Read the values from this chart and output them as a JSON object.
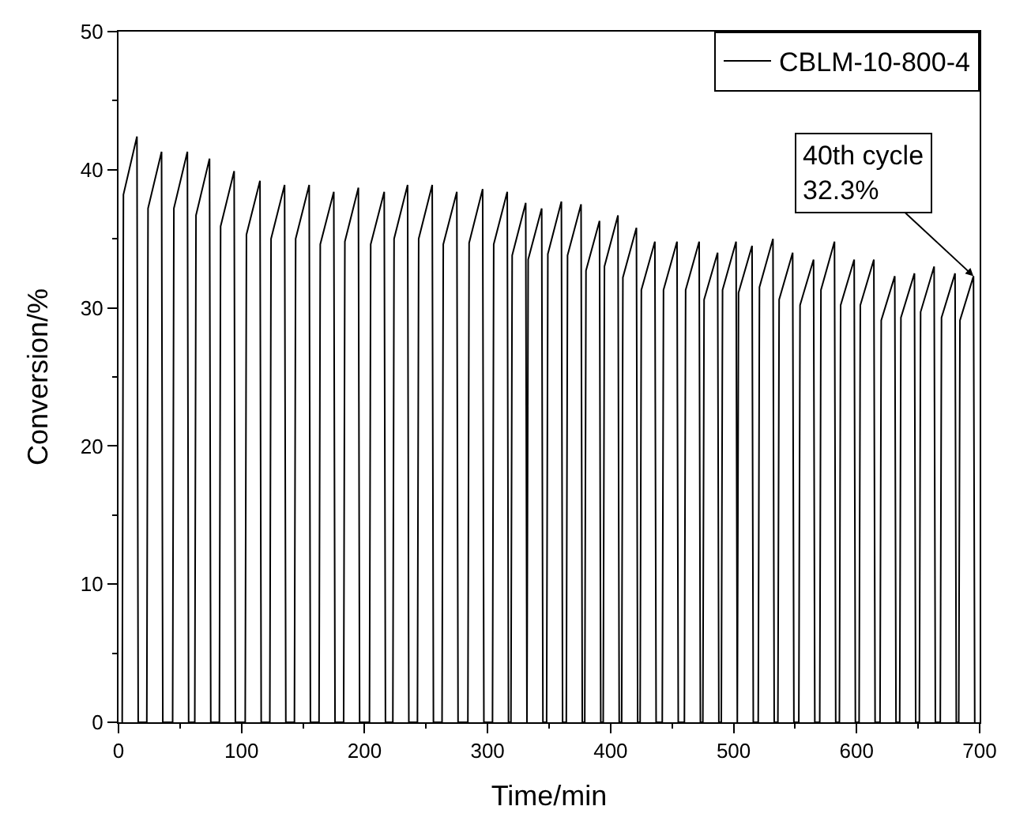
{
  "chart_data": {
    "type": "line",
    "xlabel": "Time/min",
    "ylabel": "Conversion/%",
    "xlim": [
      0,
      700
    ],
    "ylim": [
      0,
      50
    ],
    "xticks": [
      0,
      100,
      200,
      300,
      400,
      500,
      600,
      700
    ],
    "yticks": [
      0,
      10,
      20,
      30,
      40,
      50
    ],
    "legend": "top right",
    "marker": "none",
    "line_style": "solid",
    "annotations": [
      {
        "text": "40th cycle\n32.3%",
        "x": 695,
        "y": 32.3
      }
    ],
    "series": [
      {
        "name": "CBLM-10-800-4",
        "color": "#000000",
        "x": [
          3,
          4,
          15,
          16,
          23,
          24,
          35,
          36,
          44,
          45,
          56,
          57,
          62,
          63,
          74,
          75,
          82,
          83,
          94,
          95,
          103,
          104,
          115,
          116,
          123,
          124,
          135,
          136,
          143,
          144,
          155,
          156,
          163,
          164,
          175,
          176,
          183,
          184,
          195,
          196,
          204,
          205,
          216,
          217,
          223,
          224,
          235,
          236,
          243,
          244,
          255,
          256,
          263,
          264,
          275,
          276,
          284,
          285,
          296,
          297,
          304,
          305,
          316,
          317,
          319,
          320,
          331,
          332,
          332,
          333,
          344,
          345,
          348,
          349,
          360,
          361,
          364,
          365,
          376,
          377,
          379,
          380,
          391,
          392,
          394,
          395,
          406,
          407,
          409,
          410,
          421,
          422,
          424,
          425,
          436,
          437,
          442,
          443,
          454,
          455,
          460,
          461,
          472,
          473,
          475,
          476,
          487,
          488,
          490,
          491,
          502,
          503,
          503,
          504,
          515,
          516,
          520,
          521,
          532,
          533,
          536,
          537,
          548,
          549,
          553,
          554,
          565,
          566,
          570,
          571,
          582,
          583,
          586,
          587,
          598,
          599,
          602,
          603,
          614,
          615,
          619,
          620,
          631,
          632,
          635,
          636,
          647,
          648,
          651,
          652,
          663,
          664,
          668,
          669,
          680,
          681,
          683,
          684,
          695,
          696
        ],
        "values": [
          0,
          38.2,
          42.4,
          0,
          0,
          37.2,
          41.3,
          0,
          0,
          37.2,
          41.3,
          0,
          0,
          36.7,
          40.8,
          0,
          0,
          35.9,
          39.9,
          0,
          0,
          35.3,
          39.2,
          0,
          0,
          35.0,
          38.9,
          0,
          0,
          35.0,
          38.9,
          0,
          0,
          34.6,
          38.4,
          0,
          0,
          34.8,
          38.7,
          0,
          0,
          34.6,
          38.4,
          0,
          0,
          35.0,
          38.9,
          0,
          0,
          35.0,
          38.9,
          0,
          0,
          34.6,
          38.4,
          0,
          0,
          34.7,
          38.6,
          0,
          0,
          34.6,
          38.4,
          0,
          0,
          33.8,
          37.6,
          0,
          0,
          33.5,
          37.2,
          0,
          0,
          33.9,
          37.7,
          0,
          0,
          33.8,
          37.5,
          0,
          0,
          32.7,
          36.3,
          0,
          0,
          33.0,
          36.7,
          0,
          0,
          32.2,
          35.8,
          0,
          0,
          31.3,
          34.8,
          0,
          0,
          31.3,
          34.8,
          0,
          0,
          31.3,
          34.8,
          0,
          0,
          30.6,
          34.0,
          0,
          0,
          31.3,
          34.8,
          0,
          0,
          31.1,
          34.5,
          0,
          0,
          31.5,
          35.0,
          0,
          0,
          30.6,
          34.0,
          0,
          0,
          30.2,
          33.5,
          0,
          0,
          31.3,
          34.8,
          0,
          0,
          30.2,
          33.5,
          0,
          0,
          30.2,
          33.5,
          0,
          0,
          29.1,
          32.3,
          0,
          0,
          29.3,
          32.5,
          0,
          0,
          29.7,
          33.0,
          0,
          0,
          29.3,
          32.5,
          0,
          0,
          29.1,
          32.3,
          0
        ]
      }
    ]
  }
}
